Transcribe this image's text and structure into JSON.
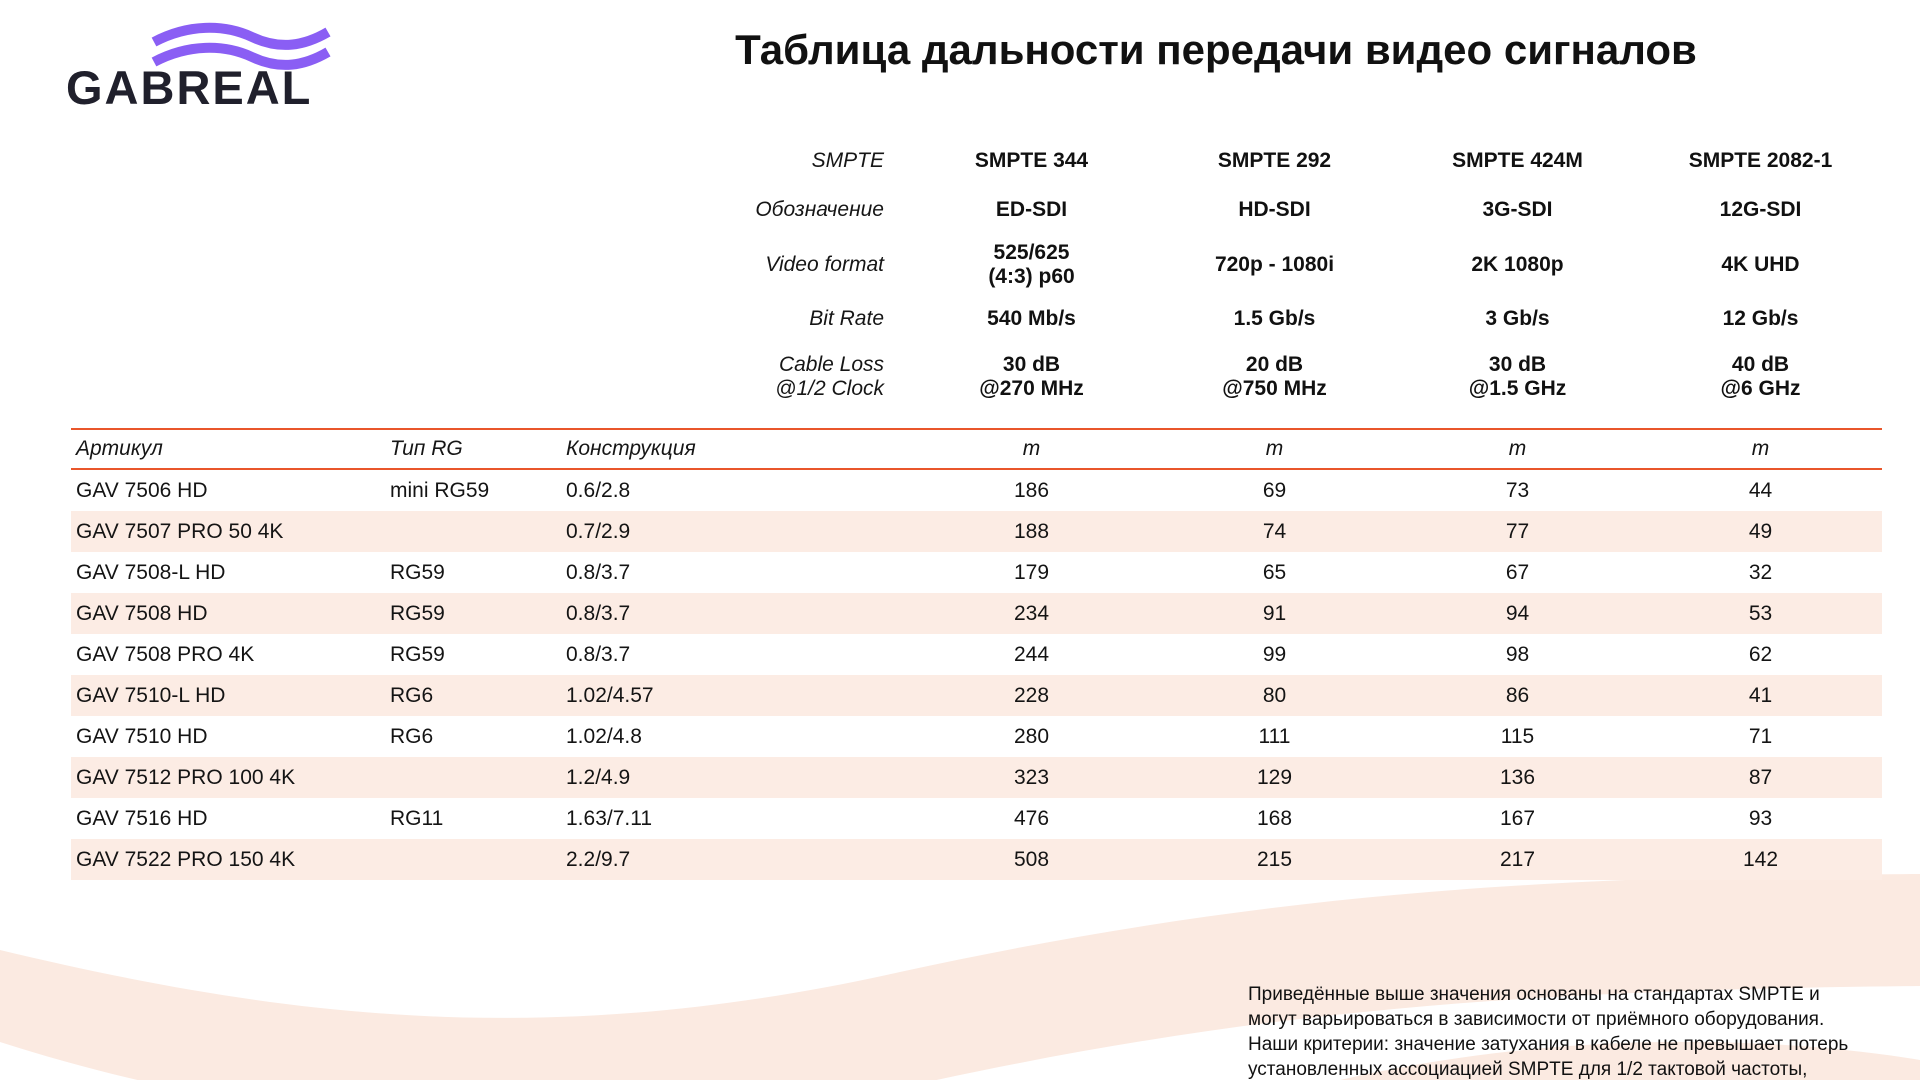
{
  "logo": {
    "text": "GABREAL"
  },
  "title": "Таблица дальности передачи видео сигналов",
  "colors": {
    "accent_orange": "#e9562b",
    "row_stripe": "#fcece4",
    "wave_background": "#fbeae1",
    "logo_purple": "#8a5ef4",
    "text": "#141414"
  },
  "spec": {
    "rows": [
      {
        "label": "SMPTE",
        "values": [
          "SMPTE 344",
          "SMPTE 292",
          "SMPTE 424M",
          "SMPTE 2082-1"
        ]
      },
      {
        "label": "Обозначение",
        "values": [
          "ED-SDI",
          "HD-SDI",
          "3G-SDI",
          "12G-SDI"
        ]
      },
      {
        "label": "Video format",
        "values": [
          "525/625\n(4:3) p60",
          "720p - 1080i",
          "2K 1080p",
          "4K UHD"
        ]
      },
      {
        "label": "Bit Rate",
        "values": [
          "540 Mb/s",
          "1.5 Gb/s",
          "3 Gb/s",
          "12 Gb/s"
        ]
      },
      {
        "label": "Cable Loss\n@1/2 Clock",
        "values": [
          "30 dB\n@270 MHz",
          "20 dB\n@750 MHz",
          "30 dB\n@1.5 GHz",
          "40 dB\n@6 GHz"
        ]
      }
    ]
  },
  "table": {
    "headers": [
      "Артикул",
      "Тип RG",
      "Конструкция",
      "m",
      "m",
      "m",
      "m"
    ],
    "rows": [
      [
        "GAV 7506 HD",
        "mini RG59",
        "0.6/2.8",
        "186",
        "69",
        "73",
        "44"
      ],
      [
        "GAV 7507 PRO 50 4K",
        "",
        "0.7/2.9",
        "188",
        "74",
        "77",
        "49"
      ],
      [
        "GAV 7508-L HD",
        "RG59",
        "0.8/3.7",
        "179",
        "65",
        "67",
        "32"
      ],
      [
        "GAV 7508 HD",
        "RG59",
        "0.8/3.7",
        "234",
        "91",
        "94",
        "53"
      ],
      [
        "GAV 7508 PRO 4K",
        "RG59",
        "0.8/3.7",
        "244",
        "99",
        "98",
        "62"
      ],
      [
        "GAV 7510-L HD",
        "RG6",
        "1.02/4.57",
        "228",
        "80",
        "86",
        "41"
      ],
      [
        "GAV 7510 HD",
        "RG6",
        "1.02/4.8",
        "280",
        "111",
        "115",
        "71"
      ],
      [
        "GAV 7512 PRO 100 4K",
        "",
        "1.2/4.9",
        "323",
        "129",
        "136",
        "87"
      ],
      [
        "GAV 7516 HD",
        "RG11",
        "1.63/7.11",
        "476",
        "168",
        "167",
        "93"
      ],
      [
        "GAV 7522 PRO 150 4K",
        "",
        "2.2/9.7",
        "508",
        "215",
        "217",
        "142"
      ]
    ]
  },
  "footnote": {
    "lines": [
      "Приведённые выше значения основаны на стандартах SMPTE и могут варьироваться в зависимости от приёмного оборудования.",
      "Наши критерии: значение затухания в кабеле не превышает потерь установленных ассоциацией SMPTE для 1/2 тактовой частоты, индивидуально указанной для каждого видео стандарта."
    ]
  }
}
